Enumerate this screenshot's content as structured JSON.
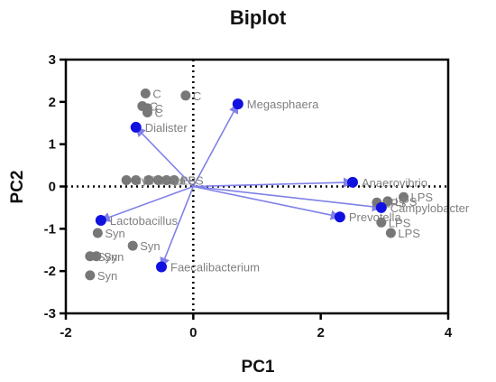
{
  "chart_data": {
    "type": "scatter",
    "title": "Biplot",
    "xlabel": "PC1",
    "ylabel": "PC2",
    "xlim": [
      -2,
      4
    ],
    "ylim": [
      -3,
      3
    ],
    "x_ticks": [
      "-2",
      "0",
      "2",
      "4"
    ],
    "y_ticks": [
      "-3",
      "-2",
      "-1",
      "0",
      "1",
      "2",
      "3"
    ],
    "zero_lines": "dotted",
    "grid": false,
    "colors": {
      "samples": "#777777",
      "loadings": "#1010e0",
      "arrows": "#8080e8",
      "labels": "#808080"
    },
    "samples": [
      {
        "x": -0.75,
        "y": 2.2,
        "label": "C"
      },
      {
        "x": -0.12,
        "y": 2.15,
        "label": "C"
      },
      {
        "x": -0.8,
        "y": 1.9,
        "label": "C"
      },
      {
        "x": -0.72,
        "y": 1.85,
        "label": "C"
      },
      {
        "x": -0.72,
        "y": 1.75,
        "label": "C"
      },
      {
        "x": -1.05,
        "y": 0.15,
        "label": "Syn"
      },
      {
        "x": -0.9,
        "y": 0.15,
        "label": "LPS"
      },
      {
        "x": -0.7,
        "y": 0.15,
        "label": "LPS"
      },
      {
        "x": -0.55,
        "y": 0.15,
        "label": "Syn"
      },
      {
        "x": -0.42,
        "y": 0.15,
        "label": "LPS"
      },
      {
        "x": -0.3,
        "y": 0.15,
        "label": "LPS"
      },
      {
        "x": -1.5,
        "y": -1.1,
        "label": "Syn"
      },
      {
        "x": -0.95,
        "y": -1.4,
        "label": "Syn"
      },
      {
        "x": -1.62,
        "y": -1.65,
        "label": "Syn"
      },
      {
        "x": -1.52,
        "y": -1.65,
        "label": "Syn"
      },
      {
        "x": -1.62,
        "y": -2.1,
        "label": "Syn"
      },
      {
        "x": 3.3,
        "y": -0.25,
        "label": "LPS"
      },
      {
        "x": 3.05,
        "y": -0.35,
        "label": "LPS"
      },
      {
        "x": 2.88,
        "y": -0.38,
        "label": "LPS"
      },
      {
        "x": 2.95,
        "y": -0.85,
        "label": "LPS"
      },
      {
        "x": 3.1,
        "y": -1.1,
        "label": "LPS"
      }
    ],
    "loadings": [
      {
        "x": 0.7,
        "y": 1.95,
        "label": "Megasphaera"
      },
      {
        "x": -0.9,
        "y": 1.4,
        "label": "Dialister"
      },
      {
        "x": 2.5,
        "y": 0.1,
        "label": "Anaerovibrio"
      },
      {
        "x": 2.95,
        "y": -0.5,
        "label": "Campylobacter"
      },
      {
        "x": 2.3,
        "y": -0.72,
        "label": "Prevotella"
      },
      {
        "x": -1.45,
        "y": -0.8,
        "label": "Lactobacillus"
      },
      {
        "x": -0.5,
        "y": -1.9,
        "label": "Faecalibacterium"
      }
    ]
  }
}
